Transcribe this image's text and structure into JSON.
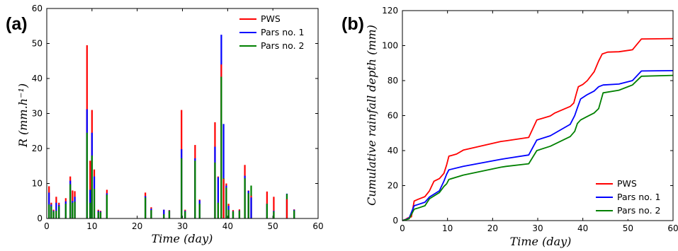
{
  "colors": {
    "PWS": "#ff0000",
    "Pars no. 1": "#0000ff",
    "Pars no. 2": "#008000"
  },
  "chart_data": [
    {
      "panel_label": "(a)",
      "type": "bar",
      "xlabel": "Time (day)",
      "ylabel": "R (mm.h⁻¹)",
      "xlim": [
        0,
        60
      ],
      "ylim": [
        0,
        60
      ],
      "xticks": [
        0,
        10,
        20,
        30,
        40,
        50,
        60
      ],
      "yticks": [
        0,
        10,
        20,
        30,
        40,
        50,
        60
      ],
      "legend_position": "top-right",
      "x": [
        0.5,
        1.0,
        1.5,
        2.1,
        2.7,
        4.2,
        5.2,
        5.7,
        6.2,
        8.9,
        9.6,
        10.0,
        10.5,
        11.4,
        11.9,
        13.3,
        21.8,
        23.1,
        25.9,
        27.1,
        29.8,
        30.6,
        32.8,
        33.8,
        37.2,
        37.9,
        38.6,
        39.1,
        39.7,
        40.2,
        41.2,
        42.6,
        43.8,
        44.6,
        45.2,
        48.7,
        50.2,
        53.1,
        54.7
      ],
      "series": [
        {
          "name": "PWS",
          "values": [
            9.2,
            4.5,
            2.5,
            6.2,
            4.5,
            5.8,
            12,
            8,
            7.8,
            49.5,
            16.5,
            31,
            14,
            2.5,
            2.2,
            8.2,
            7.4,
            3.2,
            2.5,
            2.4,
            31,
            2.5,
            21,
            5.4,
            27.5,
            12,
            44,
            11.3,
            10,
            4.2,
            2.4,
            2.6,
            15.3,
            8,
            6.5,
            7.7,
            6.2,
            5.5,
            2.6
          ]
        },
        {
          "name": "Pars no. 1",
          "values": [
            7.4,
            4.0,
            2.2,
            4.5,
            3.9,
            4.9,
            10.8,
            5,
            6.2,
            31.2,
            8.2,
            24.5,
            12,
            2.2,
            2.0,
            7.2,
            6.4,
            2.8,
            2.5,
            2.3,
            19.8,
            2.2,
            17.2,
            5.2,
            20.5,
            11.8,
            52.5,
            27,
            9.4,
            3.6,
            2.1,
            2.3,
            12.2,
            7.9,
            6.0,
            4.2,
            2.2,
            7.1,
            2.5
          ]
        },
        {
          "name": "Pars no. 2",
          "values": [
            4,
            3.5,
            2.0,
            2.2,
            3.5,
            4.2,
            9.8,
            4.5,
            4.8,
            24.5,
            4.5,
            18,
            8.5,
            1.9,
            1.8,
            6.8,
            6.0,
            2.4,
            1.2,
            2.2,
            17.2,
            2.0,
            16.5,
            4.2,
            16,
            4.5,
            40.5,
            11.5,
            8.8,
            2.5,
            2.0,
            2.2,
            11.5,
            7.2,
            9.4,
            4.2,
            2.0,
            7.0,
            2.3
          ]
        }
      ]
    },
    {
      "panel_label": "(b)",
      "type": "line",
      "xlabel": "Time (day)",
      "ylabel": "Cumulative rainfall depth (mm)",
      "xlim": [
        0,
        60
      ],
      "ylim": [
        0,
        120
      ],
      "xticks": [
        0,
        10,
        20,
        30,
        40,
        50,
        60
      ],
      "yticks": [
        0,
        20,
        40,
        60,
        80,
        100,
        120
      ],
      "legend_position": "bottom-right",
      "series": [
        {
          "name": "PWS",
          "x": [
            0,
            0.8,
            1.2,
            2.0,
            2.6,
            3.5,
            5.0,
            6.0,
            7.0,
            8.2,
            9.2,
            9.8,
            10.3,
            12.0,
            13.5,
            21.8,
            23.0,
            28.0,
            29.8,
            32.8,
            33.8,
            37.2,
            38.0,
            38.6,
            39.0,
            40.0,
            41.0,
            42.5,
            43.5,
            44.3,
            45.5,
            48.0,
            51.0,
            53.0,
            60.0
          ],
          "y": [
            0,
            0.8,
            1.5,
            2.2,
            11.2,
            12.2,
            13.7,
            17.0,
            22.5,
            24.0,
            27.0,
            31.8,
            36.8,
            38.0,
            40.3,
            45.2,
            45.6,
            47.5,
            57.5,
            59.8,
            61.5,
            65.2,
            67.2,
            73.0,
            76.5,
            77.8,
            80.0,
            85.0,
            91.2,
            95.2,
            96.3,
            96.5,
            97.6,
            103.8,
            104.0
          ]
        },
        {
          "name": "Pars no. 1",
          "x": [
            0,
            0.8,
            1.5,
            2.6,
            3.5,
            5.0,
            6.0,
            8.2,
            9.2,
            9.8,
            10.3,
            13.5,
            21.8,
            23.0,
            28.0,
            29.8,
            32.8,
            37.2,
            38.2,
            38.8,
            39.5,
            41.0,
            42.5,
            43.5,
            44.5,
            48.0,
            51.0,
            53.0,
            60.0
          ],
          "y": [
            0,
            0.7,
            1.5,
            8.5,
            9.2,
            10.5,
            13.5,
            17.0,
            22.5,
            26.5,
            29.0,
            31.0,
            35.0,
            35.5,
            37.5,
            46.0,
            48.5,
            55.0,
            60.0,
            64.5,
            69.5,
            72.0,
            74.0,
            76.5,
            77.5,
            78.0,
            80.0,
            85.5,
            85.7
          ]
        },
        {
          "name": "Pars no. 2",
          "x": [
            0,
            0.8,
            1.5,
            2.6,
            3.5,
            5.0,
            6.0,
            8.2,
            9.2,
            9.8,
            10.3,
            13.5,
            21.8,
            23.0,
            28.0,
            29.8,
            32.8,
            37.2,
            38.2,
            38.8,
            39.5,
            41.0,
            42.5,
            43.5,
            44.5,
            48.0,
            51.0,
            53.0,
            60.0
          ],
          "y": [
            0,
            0.5,
            1.0,
            6.5,
            7.2,
            8.5,
            12.5,
            16.0,
            19.5,
            21.0,
            23.5,
            26.0,
            30.5,
            31.0,
            32.5,
            40.0,
            42.5,
            48.0,
            51.0,
            55.5,
            57.5,
            59.5,
            61.5,
            64.0,
            73.0,
            74.5,
            77.5,
            82.5,
            83.0
          ]
        }
      ]
    }
  ]
}
